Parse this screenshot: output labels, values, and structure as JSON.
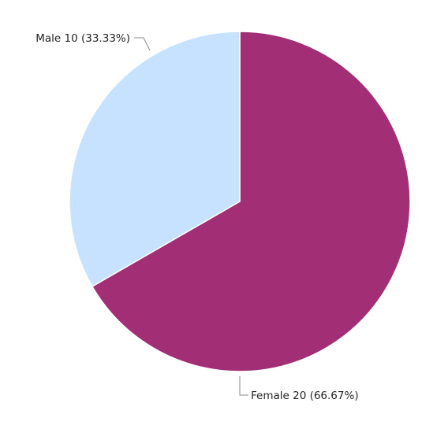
{
  "chart_data": {
    "type": "pie",
    "slices": [
      {
        "category": "Female",
        "value": 20,
        "percent": "66.67%",
        "color": "#A22F76",
        "label": "Female 20 (66.67%)"
      },
      {
        "category": "Male",
        "value": 10,
        "percent": "33.33%",
        "color": "#C6E2FF",
        "label": "Male 10 (33.33%)"
      }
    ],
    "start_angle_deg": 0,
    "direction": "clockwise",
    "legend": "none",
    "data_labels": "outside-with-leader-lines"
  }
}
